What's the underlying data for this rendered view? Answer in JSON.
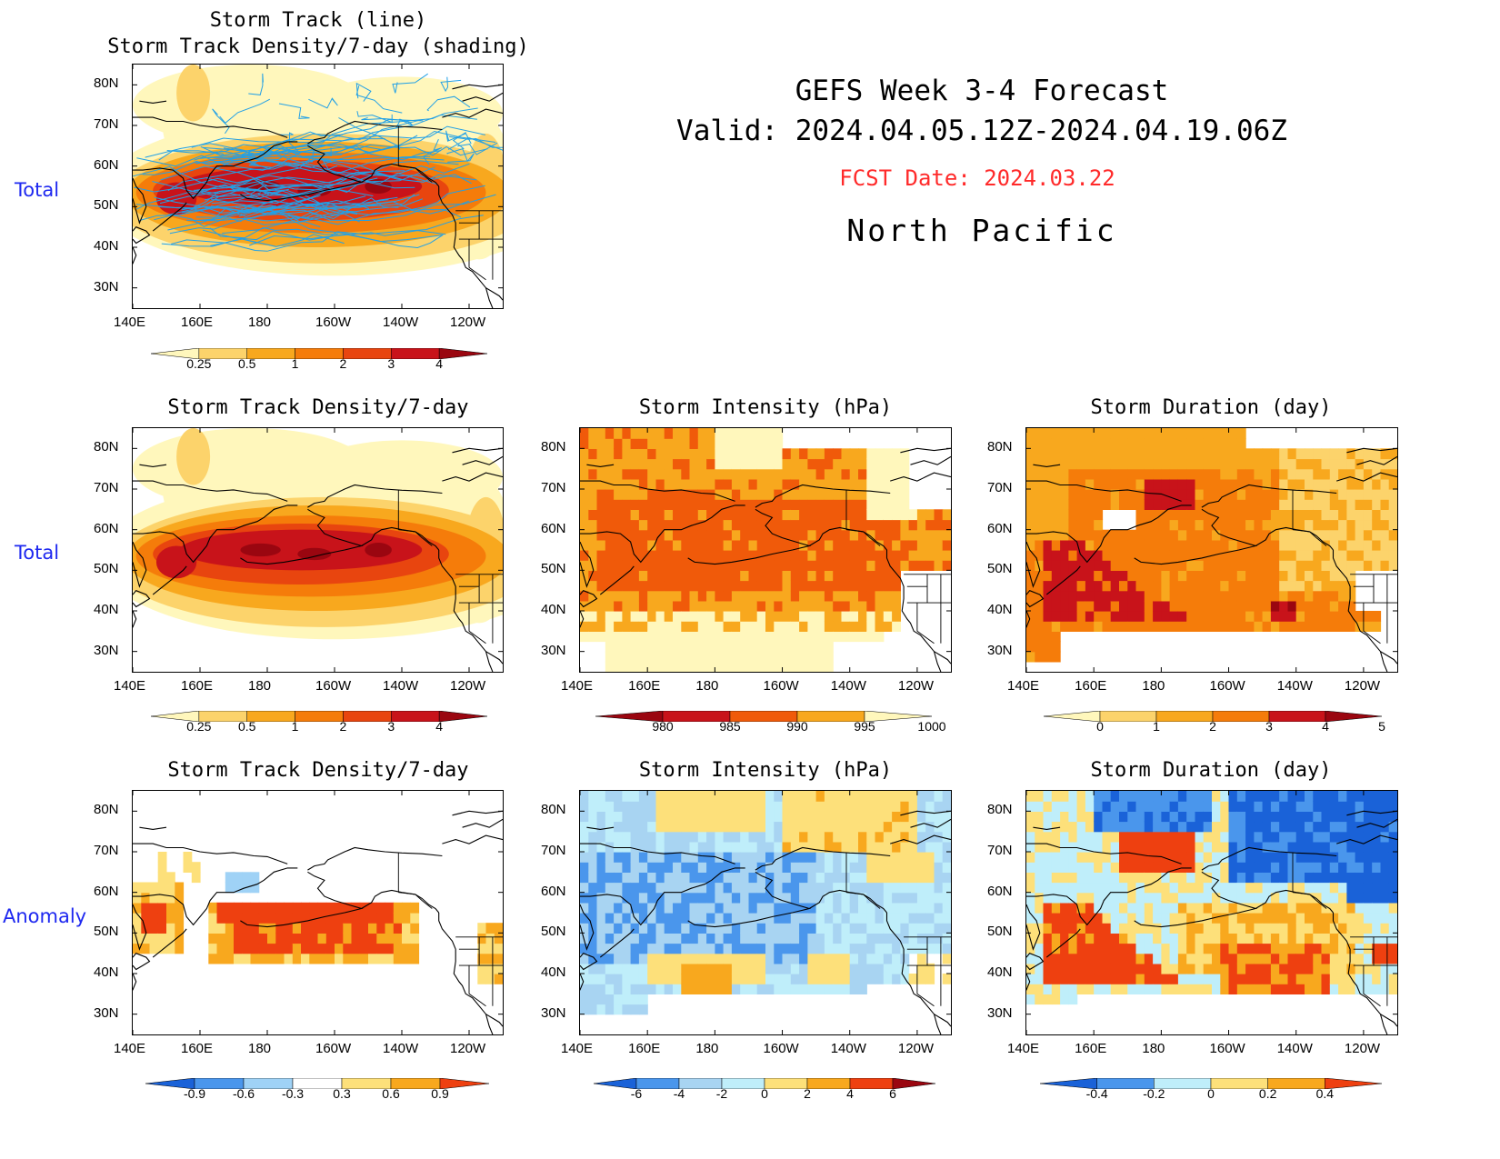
{
  "header": {
    "line1": "GEFS Week 3-4 Forecast",
    "line2": "Valid: 2024.04.05.12Z-2024.04.19.06Z",
    "fcst": "FCST Date: 2024.03.22",
    "region": "North Pacific"
  },
  "row_labels": [
    "Total",
    "Total",
    "Anomaly"
  ],
  "axes": {
    "lat": [
      "80N",
      "70N",
      "60N",
      "50N",
      "40N",
      "30N"
    ],
    "lon": [
      "140E",
      "160E",
      "180",
      "160W",
      "140W",
      "120W"
    ]
  },
  "panels": {
    "p0": {
      "title1": "Storm Track (line)",
      "title2": "Storm Track Density/7-day (shading)"
    },
    "p1": {
      "title": "Storm Track Density/7-day"
    },
    "p2": {
      "title": "Storm Intensity (hPa)"
    },
    "p3": {
      "title": "Storm Duration (day)"
    },
    "p4": {
      "title": "Storm Track Density/7-day"
    },
    "p5": {
      "title": "Storm Intensity (hPa)"
    },
    "p6": {
      "title": "Storm Duration (day)"
    }
  },
  "colorbars": {
    "density": {
      "labels": [
        "0.25",
        "0.5",
        "1",
        "2",
        "3",
        "4"
      ],
      "colors": [
        "#fff7bc",
        "#fcd36b",
        "#f8a81e",
        "#f57c0a",
        "#e8450f",
        "#c8131a",
        "#9a0610"
      ]
    },
    "intensity": {
      "labels": [
        "980",
        "985",
        "990",
        "995",
        "1000"
      ],
      "colors": [
        "#9a0610",
        "#c8131a",
        "#f05a0a",
        "#f8a81e",
        "#fff7bc"
      ]
    },
    "duration": {
      "labels": [
        "0",
        "1",
        "2",
        "3",
        "4",
        "5"
      ],
      "colors": [
        "#fff7bc",
        "#fcd36b",
        "#f8a81e",
        "#f57c0a",
        "#c8131a",
        "#9a0610"
      ]
    },
    "density_anom": {
      "labels": [
        "-0.9",
        "-0.6",
        "-0.3",
        "0.3",
        "0.6",
        "0.9"
      ],
      "colors": [
        "#1a62d8",
        "#4a96ec",
        "#9fd2f6",
        "#ffffff",
        "#fde07a",
        "#f8a81e",
        "#ee4010"
      ]
    },
    "intensity_anom": {
      "labels": [
        "-6",
        "-4",
        "-2",
        "0",
        "2",
        "4",
        "6"
      ],
      "colors": [
        "#1a62d8",
        "#4a96ec",
        "#a8d4f2",
        "#bfeefa",
        "#fde07a",
        "#f8a81e",
        "#ee4010",
        "#9a0610"
      ]
    },
    "duration_anom": {
      "labels": [
        "-0.4",
        "-0.2",
        "0",
        "0.2",
        "0.4"
      ],
      "colors": [
        "#1a62d8",
        "#4a96ec",
        "#bfeefa",
        "#fde07a",
        "#f8a81e",
        "#ee4010"
      ]
    }
  }
}
